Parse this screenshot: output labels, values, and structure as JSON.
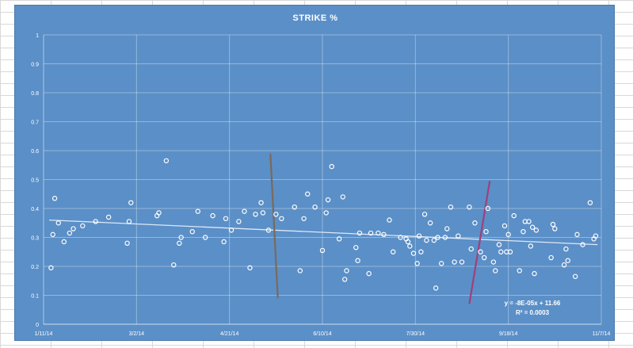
{
  "chart_data": {
    "type": "scatter",
    "title": "STRIKE %",
    "xlabel": "",
    "ylabel": "",
    "x_axis": {
      "tick_labels": [
        "1/11/14",
        "3/2/14",
        "4/21/14",
        "6/10/14",
        "7/30/14",
        "9/18/14",
        "11/7/14"
      ],
      "range": [
        "1/11/14",
        "11/7/14"
      ]
    },
    "y_axis": {
      "tick_labels": [
        "0",
        "0.1",
        "0.2",
        "0.3",
        "0.4",
        "0.5",
        "0.6",
        "0.7",
        "0.8",
        "0.9",
        "1"
      ],
      "ylim": [
        0,
        1
      ]
    },
    "grid": true,
    "colors": {
      "plot_area": "#5b8fc7",
      "points": "#ffffff",
      "trendline": "#dce8f5",
      "left_marker": "#7a6a5a",
      "right_marker": "#a0407a"
    },
    "series": [
      {
        "marker": "hollow-circle",
        "points": [
          {
            "x": "1/15/14",
            "y": 0.195
          },
          {
            "x": "1/16/14",
            "y": 0.31
          },
          {
            "x": "1/17/14",
            "y": 0.435
          },
          {
            "x": "1/19/14",
            "y": 0.35
          },
          {
            "x": "1/22/14",
            "y": 0.285
          },
          {
            "x": "1/25/14",
            "y": 0.315
          },
          {
            "x": "1/27/14",
            "y": 0.33
          },
          {
            "x": "2/1/14",
            "y": 0.34
          },
          {
            "x": "2/8/14",
            "y": 0.355
          },
          {
            "x": "2/15/14",
            "y": 0.37
          },
          {
            "x": "2/25/14",
            "y": 0.28
          },
          {
            "x": "2/26/14",
            "y": 0.355
          },
          {
            "x": "2/27/14",
            "y": 0.42
          },
          {
            "x": "3/13/14",
            "y": 0.375
          },
          {
            "x": "3/14/14",
            "y": 0.385
          },
          {
            "x": "3/18/14",
            "y": 0.565
          },
          {
            "x": "3/22/14",
            "y": 0.205
          },
          {
            "x": "3/25/14",
            "y": 0.28
          },
          {
            "x": "3/26/14",
            "y": 0.3
          },
          {
            "x": "4/1/14",
            "y": 0.32
          },
          {
            "x": "4/4/14",
            "y": 0.39
          },
          {
            "x": "4/8/14",
            "y": 0.3
          },
          {
            "x": "4/12/14",
            "y": 0.375
          },
          {
            "x": "4/18/14",
            "y": 0.285
          },
          {
            "x": "4/19/14",
            "y": 0.365
          },
          {
            "x": "4/22/14",
            "y": 0.325
          },
          {
            "x": "4/26/14",
            "y": 0.355
          },
          {
            "x": "4/29/14",
            "y": 0.39
          },
          {
            "x": "5/2/14",
            "y": 0.195
          },
          {
            "x": "5/5/14",
            "y": 0.38
          },
          {
            "x": "5/8/14",
            "y": 0.42
          },
          {
            "x": "5/9/14",
            "y": 0.385
          },
          {
            "x": "5/12/14",
            "y": 0.325
          },
          {
            "x": "5/16/14",
            "y": 0.38
          },
          {
            "x": "5/19/14",
            "y": 0.365
          },
          {
            "x": "5/26/14",
            "y": 0.405
          },
          {
            "x": "5/29/14",
            "y": 0.185
          },
          {
            "x": "5/31/14",
            "y": 0.365
          },
          {
            "x": "6/2/14",
            "y": 0.45
          },
          {
            "x": "6/6/14",
            "y": 0.405
          },
          {
            "x": "6/10/14",
            "y": 0.255
          },
          {
            "x": "6/12/14",
            "y": 0.385
          },
          {
            "x": "6/13/14",
            "y": 0.43
          },
          {
            "x": "6/15/14",
            "y": 0.545
          },
          {
            "x": "6/19/14",
            "y": 0.295
          },
          {
            "x": "6/21/14",
            "y": 0.44
          },
          {
            "x": "6/22/14",
            "y": 0.155
          },
          {
            "x": "6/23/14",
            "y": 0.185
          },
          {
            "x": "6/28/14",
            "y": 0.265
          },
          {
            "x": "6/29/14",
            "y": 0.22
          },
          {
            "x": "6/30/14",
            "y": 0.315
          },
          {
            "x": "7/5/14",
            "y": 0.175
          },
          {
            "x": "7/6/14",
            "y": 0.315
          },
          {
            "x": "7/10/14",
            "y": 0.315
          },
          {
            "x": "7/13/14",
            "y": 0.31
          },
          {
            "x": "7/16/14",
            "y": 0.36
          },
          {
            "x": "7/18/14",
            "y": 0.25
          },
          {
            "x": "7/22/14",
            "y": 0.3
          },
          {
            "x": "7/25/14",
            "y": 0.295
          },
          {
            "x": "7/26/14",
            "y": 0.285
          },
          {
            "x": "7/27/14",
            "y": 0.27
          },
          {
            "x": "7/29/14",
            "y": 0.245
          },
          {
            "x": "7/31/14",
            "y": 0.21
          },
          {
            "x": "8/1/14",
            "y": 0.305
          },
          {
            "x": "8/2/14",
            "y": 0.25
          },
          {
            "x": "8/4/14",
            "y": 0.38
          },
          {
            "x": "8/5/14",
            "y": 0.29
          },
          {
            "x": "8/7/14",
            "y": 0.35
          },
          {
            "x": "8/9/14",
            "y": 0.29
          },
          {
            "x": "8/10/14",
            "y": 0.125
          },
          {
            "x": "8/11/14",
            "y": 0.3
          },
          {
            "x": "8/13/14",
            "y": 0.21
          },
          {
            "x": "8/15/14",
            "y": 0.3
          },
          {
            "x": "8/16/14",
            "y": 0.33
          },
          {
            "x": "8/18/14",
            "y": 0.405
          },
          {
            "x": "8/20/14",
            "y": 0.215
          },
          {
            "x": "8/22/14",
            "y": 0.305
          },
          {
            "x": "8/24/14",
            "y": 0.215
          },
          {
            "x": "8/28/14",
            "y": 0.405
          },
          {
            "x": "8/29/14",
            "y": 0.26
          },
          {
            "x": "8/31/14",
            "y": 0.35
          },
          {
            "x": "9/3/14",
            "y": 0.25
          },
          {
            "x": "9/5/14",
            "y": 0.23
          },
          {
            "x": "9/6/14",
            "y": 0.32
          },
          {
            "x": "9/7/14",
            "y": 0.4
          },
          {
            "x": "9/10/14",
            "y": 0.215
          },
          {
            "x": "9/11/14",
            "y": 0.185
          },
          {
            "x": "9/13/14",
            "y": 0.275
          },
          {
            "x": "9/14/14",
            "y": 0.25
          },
          {
            "x": "9/16/14",
            "y": 0.34
          },
          {
            "x": "9/17/14",
            "y": 0.25
          },
          {
            "x": "9/18/14",
            "y": 0.31
          },
          {
            "x": "9/19/14",
            "y": 0.25
          },
          {
            "x": "9/21/14",
            "y": 0.375
          },
          {
            "x": "9/24/14",
            "y": 0.185
          },
          {
            "x": "9/26/14",
            "y": 0.32
          },
          {
            "x": "9/27/14",
            "y": 0.355
          },
          {
            "x": "9/29/14",
            "y": 0.355
          },
          {
            "x": "9/30/14",
            "y": 0.27
          },
          {
            "x": "10/1/14",
            "y": 0.335
          },
          {
            "x": "10/2/14",
            "y": 0.175
          },
          {
            "x": "10/3/14",
            "y": 0.325
          },
          {
            "x": "10/11/14",
            "y": 0.23
          },
          {
            "x": "10/12/14",
            "y": 0.345
          },
          {
            "x": "10/13/14",
            "y": 0.33
          },
          {
            "x": "10/18/14",
            "y": 0.205
          },
          {
            "x": "10/19/14",
            "y": 0.26
          },
          {
            "x": "10/20/14",
            "y": 0.22
          },
          {
            "x": "10/24/14",
            "y": 0.165
          },
          {
            "x": "10/25/14",
            "y": 0.31
          },
          {
            "x": "10/28/14",
            "y": 0.275
          },
          {
            "x": "11/1/14",
            "y": 0.42
          },
          {
            "x": "11/3/14",
            "y": 0.295
          },
          {
            "x": "11/4/14",
            "y": 0.305
          }
        ]
      }
    ],
    "trendline": {
      "type": "linear",
      "from": {
        "x": "1/14/14",
        "y": 0.36
      },
      "to": {
        "x": "11/5/14",
        "y": 0.275
      },
      "equation": "y = -8E-05x + 11.66",
      "r_squared": "R² = 0.0003"
    },
    "annotations": [
      {
        "kind": "line",
        "color_key": "left_marker",
        "from": {
          "x": "5/13/14",
          "y": 0.59
        },
        "to": {
          "x": "5/17/14",
          "y": 0.09
        }
      },
      {
        "kind": "line",
        "color_key": "right_marker",
        "from": {
          "x": "9/8/14",
          "y": 0.495
        },
        "to": {
          "x": "8/28/14",
          "y": 0.07
        }
      }
    ]
  }
}
